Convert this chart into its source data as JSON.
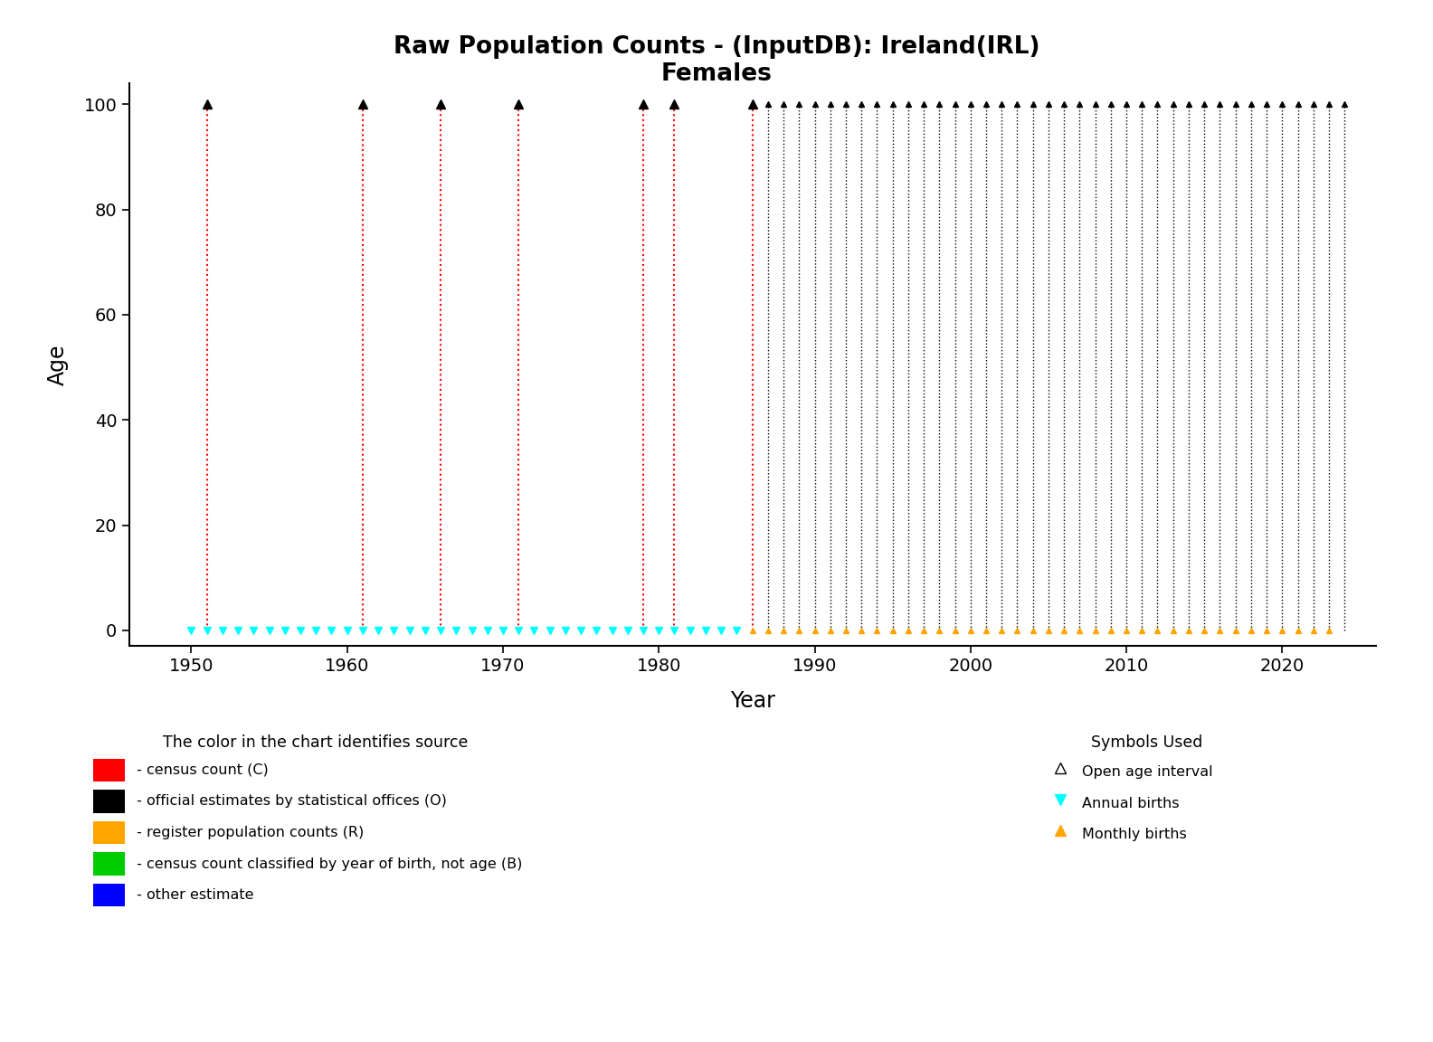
{
  "title_line1": "Raw Population Counts - (InputDB): Ireland(IRL)",
  "title_line2": "Females",
  "xlabel": "Year",
  "ylabel": "Age",
  "ylim": [
    -3,
    104
  ],
  "xlim": [
    1946,
    2026
  ],
  "yticks": [
    0,
    20,
    40,
    60,
    80,
    100
  ],
  "xticks": [
    1950,
    1960,
    1970,
    1980,
    1990,
    2000,
    2010,
    2020
  ],
  "census_years_red": [
    1951,
    1961,
    1966,
    1971,
    1979,
    1981,
    1986
  ],
  "official_est_years_black": [
    1987,
    1988,
    1989,
    1990,
    1991,
    1992,
    1993,
    1994,
    1995,
    1996,
    1997,
    1998,
    1999,
    2000,
    2001,
    2002,
    2003,
    2004,
    2005,
    2006,
    2007,
    2008,
    2009,
    2010,
    2011,
    2012,
    2013,
    2014,
    2015,
    2016,
    2017,
    2018,
    2019,
    2020,
    2021,
    2022,
    2023,
    2024
  ],
  "annual_births_cyan": [
    1950,
    1951,
    1952,
    1953,
    1954,
    1955,
    1956,
    1957,
    1958,
    1959,
    1960,
    1961,
    1962,
    1963,
    1964,
    1965,
    1966,
    1967,
    1968,
    1969,
    1970,
    1971,
    1972,
    1973,
    1974,
    1975,
    1976,
    1977,
    1978,
    1979,
    1980,
    1981,
    1982,
    1983,
    1984,
    1985
  ],
  "monthly_births_orange": [
    1986,
    1987,
    1988,
    1989,
    1990,
    1991,
    1992,
    1993,
    1994,
    1995,
    1996,
    1997,
    1998,
    1999,
    2000,
    2001,
    2002,
    2003,
    2004,
    2005,
    2006,
    2007,
    2008,
    2009,
    2010,
    2011,
    2012,
    2013,
    2014,
    2015,
    2016,
    2017,
    2018,
    2019,
    2020,
    2021,
    2022,
    2023
  ],
  "age_max": 100,
  "background_color": "#ffffff",
  "red_color": "#ff0000",
  "black_color": "#000000",
  "cyan_color": "#00ffff",
  "orange_color": "#ffa500",
  "legend_color_title": "The color in the chart identifies source",
  "legend_symbols_title": "Symbols Used",
  "legend_color_items": [
    [
      "#ff0000",
      " - census count (C)"
    ],
    [
      "#000000",
      " - official estimates by statistical offices (O)"
    ],
    [
      "#ffa500",
      " - register population counts (R)"
    ],
    [
      "#00cc00",
      " - census count classified by year of birth, not age (B)"
    ],
    [
      "#0000ff",
      " - other estimate"
    ]
  ],
  "legend_symbol_items": [
    [
      "black",
      "^",
      "none",
      "Open age interval"
    ],
    [
      "#00ffff",
      "v",
      "#00ffff",
      "Annual births"
    ],
    [
      "#ffa500",
      "^",
      "#ffa500",
      "Monthly births"
    ]
  ]
}
